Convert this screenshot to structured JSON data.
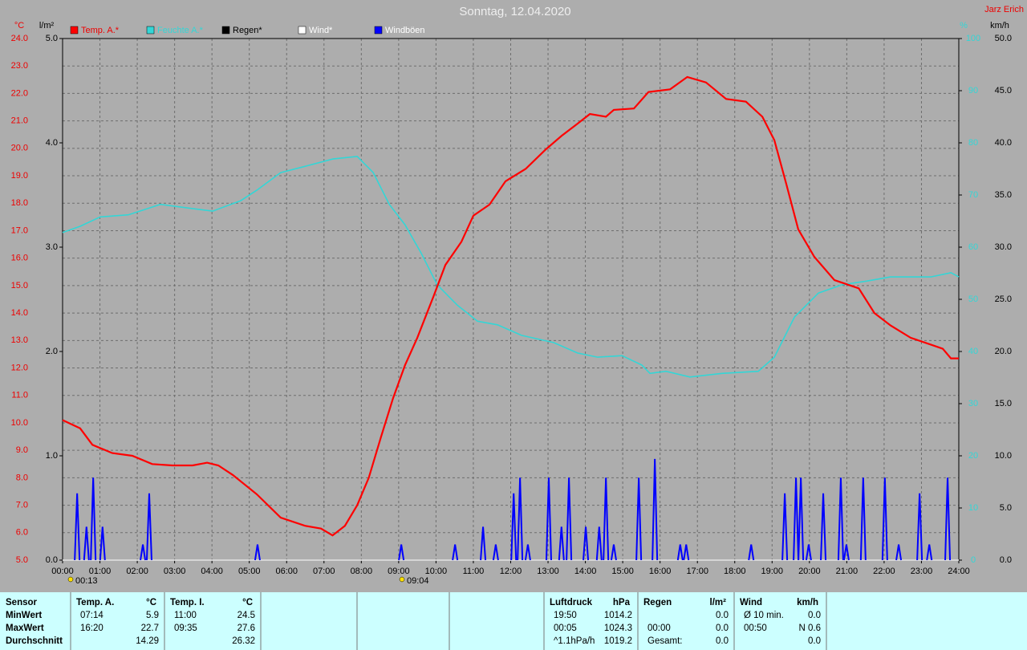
{
  "chart_data": {
    "type": "line",
    "title": "Sonntag, 12.04.2020",
    "author": "Jarz Erich",
    "units": {
      "y": "°C",
      "y2": "%",
      "y3": "l/m²",
      "y4": "km/h"
    },
    "xlim": [
      0,
      24
    ],
    "xticks": [
      {
        "value": 0,
        "label": "00:00"
      },
      {
        "value": 1,
        "label": "01:00"
      },
      {
        "value": 2,
        "label": "02:00"
      },
      {
        "value": 3,
        "label": "03:00"
      },
      {
        "value": 4,
        "label": "04:00"
      },
      {
        "value": 5,
        "label": "05:00"
      },
      {
        "value": 6,
        "label": "06:00"
      },
      {
        "value": 7,
        "label": "07:00"
      },
      {
        "value": 8,
        "label": "08:00"
      },
      {
        "value": 9,
        "label": "09:00"
      },
      {
        "value": 10,
        "label": "10:00"
      },
      {
        "value": 11,
        "label": "11:00"
      },
      {
        "value": 12,
        "label": "12:00"
      },
      {
        "value": 13,
        "label": "13:00"
      },
      {
        "value": 14,
        "label": "14:00"
      },
      {
        "value": 15,
        "label": "15:00"
      },
      {
        "value": 16,
        "label": "16:00"
      },
      {
        "value": 17,
        "label": "17:00"
      },
      {
        "value": 18,
        "label": "18:00"
      },
      {
        "value": 19,
        "label": "19:00"
      },
      {
        "value": 20,
        "label": "20:00"
      },
      {
        "value": 21,
        "label": "21:00"
      },
      {
        "value": 22,
        "label": "22:00"
      },
      {
        "value": 23,
        "label": "23:00"
      },
      {
        "value": 24,
        "label": "24:00"
      }
    ],
    "ylim": [
      5,
      24
    ],
    "yticks": [
      {
        "value": 5,
        "label": "5.0"
      },
      {
        "value": 6,
        "label": "6.0"
      },
      {
        "value": 7,
        "label": "7.0"
      },
      {
        "value": 8,
        "label": "8.0"
      },
      {
        "value": 9,
        "label": "9.0"
      },
      {
        "value": 10,
        "label": "10.0"
      },
      {
        "value": 11,
        "label": "11.0"
      },
      {
        "value": 12,
        "label": "12.0"
      },
      {
        "value": 13,
        "label": "13.0"
      },
      {
        "value": 14,
        "label": "14.0"
      },
      {
        "value": 15,
        "label": "15.0"
      },
      {
        "value": 16,
        "label": "16.0"
      },
      {
        "value": 17,
        "label": "17.0"
      },
      {
        "value": 18,
        "label": "18.0"
      },
      {
        "value": 19,
        "label": "19.0"
      },
      {
        "value": 20,
        "label": "20.0"
      },
      {
        "value": 21,
        "label": "21.0"
      },
      {
        "value": 22,
        "label": "22.0"
      },
      {
        "value": 23,
        "label": "23.0"
      },
      {
        "value": 24,
        "label": "24.0"
      }
    ],
    "y2lim": [
      0,
      100
    ],
    "y2ticks": [
      0,
      10,
      20,
      30,
      40,
      50,
      60,
      70,
      80,
      90,
      100
    ],
    "y3lim": [
      0,
      5
    ],
    "y3ticks": [
      {
        "value": 0,
        "label": "0.0"
      },
      {
        "value": 1,
        "label": "1.0"
      },
      {
        "value": 2,
        "label": "2.0"
      },
      {
        "value": 3,
        "label": "3.0"
      },
      {
        "value": 4,
        "label": "4.0"
      },
      {
        "value": 5,
        "label": "5.0"
      }
    ],
    "y4lim": [
      0,
      50
    ],
    "y4ticks": [
      {
        "value": 0,
        "label": "0.0"
      },
      {
        "value": 5,
        "label": "5.0"
      },
      {
        "value": 10,
        "label": "10.0"
      },
      {
        "value": 15,
        "label": "15.0"
      },
      {
        "value": 20,
        "label": "20.0"
      },
      {
        "value": 25,
        "label": "25.0"
      },
      {
        "value": 30,
        "label": "30.0"
      },
      {
        "value": 35,
        "label": "35.0"
      },
      {
        "value": 40,
        "label": "40.0"
      },
      {
        "value": 45,
        "label": "45.0"
      },
      {
        "value": 50,
        "label": "50.0"
      }
    ],
    "grid": true,
    "series": [
      {
        "name": "Temp. A.*",
        "color": "#ff0000",
        "axis": "y",
        "mark": "line",
        "x": [
          0,
          0.47,
          0.8,
          1.33,
          1.87,
          2.4,
          2.94,
          3.48,
          3.87,
          4.17,
          4.56,
          5.2,
          5.84,
          6.49,
          6.92,
          7.23,
          7.56,
          7.89,
          8.2,
          8.53,
          8.85,
          9.17,
          9.5,
          9.93,
          10.25,
          10.68,
          11.0,
          11.43,
          11.86,
          12.4,
          12.93,
          13.36,
          13.79,
          14.12,
          14.55,
          14.76,
          15.3,
          15.69,
          16.27,
          16.73,
          17.23,
          17.77,
          18.3,
          18.74,
          19.06,
          19.38,
          19.7,
          20.13,
          20.67,
          21.32,
          21.74,
          22.17,
          22.71,
          23.25,
          23.57,
          23.79,
          24
        ],
        "values": [
          10.1,
          9.8,
          9.2,
          8.9,
          8.8,
          8.5,
          8.45,
          8.45,
          8.55,
          8.45,
          8.1,
          7.4,
          6.55,
          6.25,
          6.15,
          5.9,
          6.25,
          7.0,
          8.0,
          9.5,
          10.9,
          12.1,
          13.1,
          14.6,
          15.75,
          16.6,
          17.55,
          17.95,
          18.8,
          19.25,
          19.95,
          20.45,
          20.9,
          21.25,
          21.15,
          21.4,
          21.45,
          22.05,
          22.15,
          22.6,
          22.4,
          21.8,
          21.7,
          21.15,
          20.3,
          18.7,
          17.05,
          16.05,
          15.2,
          14.9,
          14.0,
          13.55,
          13.1,
          12.85,
          12.7,
          12.35,
          12.35
        ]
      },
      {
        "name": "Feuchte A.*",
        "color": "#33d6d6",
        "axis": "y2",
        "mark": "line",
        "x": [
          0,
          0.47,
          1.01,
          1.76,
          2.62,
          3.48,
          4.02,
          4.77,
          5.2,
          5.84,
          6.49,
          7.24,
          7.89,
          8.32,
          8.75,
          9.17,
          9.6,
          10.03,
          10.57,
          11.11,
          11.65,
          12.29,
          13.15,
          13.79,
          14.33,
          14.98,
          15.51,
          15.73,
          16.16,
          16.8,
          17.66,
          18.63,
          19.06,
          19.6,
          20.24,
          20.88,
          21.53,
          22.17,
          22.82,
          23.25,
          23.79,
          24
        ],
        "values": [
          62.8,
          64,
          65.8,
          66.2,
          68.2,
          67.4,
          66.9,
          68.9,
          70.9,
          74.3,
          75.5,
          76.9,
          77.4,
          74.3,
          68.2,
          64.3,
          58.9,
          52.8,
          48.9,
          45.8,
          45.1,
          43.1,
          41.7,
          39.7,
          38.9,
          39.2,
          37.4,
          35.8,
          36.2,
          35.1,
          35.8,
          36.2,
          38.9,
          46.6,
          51.2,
          52.8,
          53.5,
          54.3,
          54.3,
          54.3,
          55.1,
          54.3
        ]
      },
      {
        "name": "Regen*",
        "color": "#000000",
        "axis": "y3",
        "mark": "line",
        "x": [
          0,
          24
        ],
        "values": [
          0,
          0
        ]
      },
      {
        "name": "Wind*",
        "color": "#ffffff",
        "axis": "y4",
        "mark": "line",
        "x": [
          0,
          24
        ],
        "values": [
          0,
          0
        ]
      },
      {
        "name": "Windböen",
        "color": "#0000ff",
        "axis": "y4",
        "mark": "spike",
        "x": [
          0.39,
          0.64,
          0.82,
          1.07,
          2.15,
          2.32,
          5.22,
          9.07,
          10.51,
          11.26,
          11.6,
          12.08,
          12.25,
          12.46,
          13.02,
          13.36,
          13.56,
          14.01,
          14.37,
          14.55,
          14.76,
          15.43,
          15.86,
          16.54,
          16.7,
          18.44,
          19.34,
          19.64,
          19.77,
          19.98,
          20.37,
          20.84,
          20.99,
          21.44,
          22.02,
          22.39,
          22.95,
          23.21,
          23.7
        ],
        "values": [
          6.4,
          3.2,
          7.9,
          3.2,
          1.5,
          6.4,
          1.5,
          1.5,
          1.5,
          3.2,
          1.5,
          6.4,
          7.9,
          1.5,
          7.9,
          3.2,
          7.9,
          3.2,
          3.2,
          7.9,
          1.5,
          7.9,
          9.7,
          1.5,
          1.5,
          1.5,
          6.4,
          7.9,
          7.9,
          1.5,
          6.4,
          7.9,
          1.5,
          7.9,
          7.9,
          1.5,
          6.4,
          1.5,
          7.9
        ]
      }
    ],
    "annotations": [
      {
        "text": "00:13"
      },
      {
        "text": "09:04"
      }
    ]
  },
  "summary_table": {
    "columns": [
      {
        "header": "Sensor",
        "rows": [
          {
            "time": "MinWert"
          },
          {
            "time": "MaxWert"
          },
          {
            "time": "Durchschnitt"
          }
        ]
      },
      {
        "header": "Temp. A.",
        "unit": "°C",
        "rows": [
          {
            "time": "07:14",
            "value": "5.9"
          },
          {
            "time": "16:20",
            "value": "22.7"
          },
          {
            "value": "14.29"
          }
        ]
      },
      {
        "header": "Temp. I.",
        "unit": "°C",
        "rows": [
          {
            "time": "11:00",
            "value": "24.5"
          },
          {
            "time": "09:35",
            "value": "27.6"
          },
          {
            "value": "26.32"
          }
        ]
      },
      {
        "header": "Luftdruck",
        "unit": "hPa",
        "rows": [
          {
            "time": "19:50",
            "value": "1014.2"
          },
          {
            "time": "00:05",
            "value": "1024.3"
          },
          {
            "time": "^1.1hPa/h",
            "value": "1019.2"
          }
        ]
      },
      {
        "header": "Regen",
        "unit": "l/m²",
        "rows": [
          {
            "value": "0.0"
          },
          {
            "time": "00:00",
            "value": "0.0"
          },
          {
            "time": "Gesamt:",
            "value": "0.0"
          }
        ]
      },
      {
        "header": "Wind",
        "unit": "km/h",
        "rows": [
          {
            "time": "Ø 10 min.",
            "value": "0.0"
          },
          {
            "time": "00:50",
            "value": "N 0.6"
          },
          {
            "value": "0.0"
          }
        ]
      }
    ]
  }
}
